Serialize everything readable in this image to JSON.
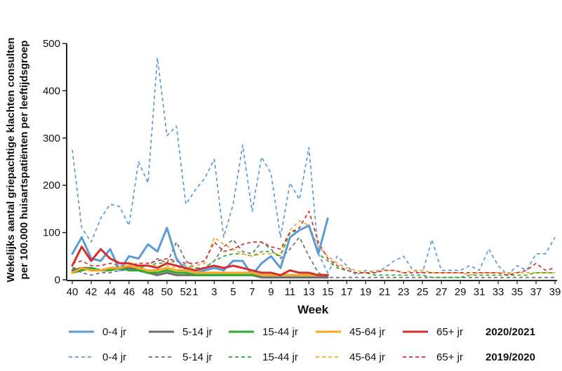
{
  "chart_data": {
    "type": "line",
    "ylabel_line1": "Wekelijks aantal griepachtige klachten consulten",
    "ylabel_line2": "per 100.000 huisartspatiënten per leeftijdsgroep",
    "xlabel": "Week",
    "ylim": [
      0,
      500
    ],
    "yticks": [
      "0",
      "100",
      "200",
      "300",
      "400",
      "500"
    ],
    "week_order": [
      40,
      41,
      42,
      43,
      44,
      45,
      46,
      47,
      48,
      49,
      50,
      51,
      52,
      1,
      2,
      3,
      4,
      5,
      6,
      7,
      8,
      9,
      10,
      11,
      12,
      13,
      14,
      15,
      16,
      17,
      18,
      19,
      20,
      21,
      22,
      23,
      24,
      25,
      26,
      27,
      28,
      29,
      30,
      31,
      32,
      33,
      34,
      35,
      36,
      37,
      38,
      39
    ],
    "xticks": [
      "40",
      "42",
      "44",
      "46",
      "48",
      "50",
      "52",
      "1",
      "3",
      "5",
      "7",
      "9",
      "11",
      "13",
      "15",
      "17",
      "19",
      "21",
      "23",
      "25",
      "27",
      "29",
      "31",
      "33",
      "35",
      "37",
      "39"
    ],
    "grid": false,
    "legend_position": "bottom",
    "legend_rows": [
      "2020/2021",
      "2019/2020"
    ],
    "series": [
      {
        "name": "0-4 jr",
        "season": "2019/2020",
        "color": "#5b9bd5",
        "dashed": true,
        "values": [
          275,
          110,
          80,
          130,
          160,
          155,
          115,
          250,
          205,
          470,
          305,
          325,
          160,
          190,
          215,
          255,
          90,
          160,
          285,
          145,
          260,
          225,
          90,
          205,
          170,
          280,
          55,
          15,
          50,
          30,
          10,
          20,
          15,
          25,
          40,
          50,
          20,
          15,
          85,
          20,
          20,
          20,
          30,
          20,
          65,
          30,
          10,
          30,
          20,
          55,
          55,
          90
        ]
      },
      {
        "name": "5-14 jr",
        "season": "2019/2020",
        "color": "#6d6d6d",
        "dashed": true,
        "values": [
          25,
          15,
          10,
          15,
          15,
          20,
          20,
          25,
          30,
          45,
          35,
          80,
          40,
          25,
          25,
          40,
          70,
          85,
          60,
          55,
          80,
          65,
          45,
          65,
          90,
          50,
          15,
          5,
          5,
          5,
          5,
          5,
          5,
          5,
          5,
          5,
          5,
          5,
          5,
          5,
          5,
          5,
          5,
          5,
          5,
          5,
          5,
          5,
          5,
          5,
          5,
          5
        ]
      },
      {
        "name": "15-44 jr",
        "season": "2019/2020",
        "color": "#2eaa2e",
        "dashed": true,
        "values": [
          25,
          25,
          20,
          20,
          25,
          30,
          25,
          25,
          30,
          35,
          35,
          40,
          30,
          25,
          25,
          40,
          50,
          55,
          55,
          50,
          60,
          60,
          50,
          100,
          105,
          115,
          55,
          40,
          25,
          20,
          15,
          15,
          10,
          10,
          10,
          10,
          10,
          10,
          5,
          5,
          5,
          5,
          10,
          10,
          10,
          10,
          10,
          10,
          10,
          15,
          15,
          15
        ]
      },
      {
        "name": "45-64 jr",
        "season": "2019/2020",
        "color": "#f5a623",
        "dashed": true,
        "values": [
          20,
          25,
          20,
          20,
          20,
          25,
          25,
          30,
          30,
          30,
          30,
          25,
          25,
          30,
          35,
          90,
          75,
          65,
          55,
          50,
          55,
          55,
          55,
          105,
          125,
          115,
          70,
          50,
          35,
          25,
          20,
          15,
          20,
          20,
          20,
          15,
          20,
          20,
          15,
          15,
          15,
          15,
          10,
          15,
          15,
          15,
          15,
          15,
          15,
          15,
          15,
          15
        ]
      },
      {
        "name": "65+ jr",
        "season": "2019/2020",
        "color": "#d32f2f",
        "dashed": true,
        "values": [
          35,
          40,
          30,
          30,
          35,
          30,
          30,
          35,
          35,
          40,
          45,
          40,
          35,
          35,
          40,
          80,
          60,
          65,
          75,
          80,
          80,
          70,
          65,
          100,
          110,
          145,
          80,
          45,
          30,
          20,
          15,
          15,
          15,
          20,
          20,
          15,
          15,
          15,
          15,
          15,
          15,
          15,
          15,
          15,
          15,
          15,
          10,
          15,
          20,
          35,
          20,
          25
        ]
      },
      {
        "name": "0-4 jr",
        "season": "2020/2021",
        "color": "#5b9bd5",
        "dashed": false,
        "values": [
          55,
          90,
          45,
          40,
          65,
          20,
          50,
          45,
          75,
          60,
          110,
          45,
          20,
          15,
          20,
          25,
          20,
          40,
          40,
          10,
          35,
          50,
          25,
          90,
          105,
          115,
          55,
          130
        ]
      },
      {
        "name": "5-14 jr",
        "season": "2020/2021",
        "color": "#6d6d6d",
        "dashed": false,
        "values": [
          20,
          25,
          25,
          20,
          25,
          25,
          25,
          20,
          15,
          10,
          15,
          10,
          10,
          10,
          10,
          10,
          10,
          10,
          10,
          10,
          5,
          5,
          5,
          5,
          5,
          5,
          5,
          5
        ]
      },
      {
        "name": "15-44 jr",
        "season": "2020/2021",
        "color": "#2eaa2e",
        "dashed": false,
        "values": [
          15,
          20,
          25,
          20,
          20,
          25,
          20,
          20,
          15,
          15,
          20,
          15,
          15,
          10,
          10,
          10,
          10,
          10,
          10,
          10,
          10,
          10,
          10,
          10,
          10,
          10,
          10,
          10
        ]
      },
      {
        "name": "45-64 jr",
        "season": "2020/2021",
        "color": "#f5a623",
        "dashed": false,
        "values": [
          15,
          25,
          20,
          20,
          25,
          25,
          30,
          25,
          20,
          20,
          25,
          20,
          20,
          15,
          15,
          15,
          15,
          15,
          15,
          15,
          10,
          10,
          10,
          10,
          10,
          10,
          10,
          10
        ]
      },
      {
        "name": "65+ jr",
        "season": "2020/2021",
        "color": "#d32f2f",
        "dashed": false,
        "values": [
          30,
          70,
          40,
          65,
          45,
          35,
          35,
          30,
          30,
          25,
          35,
          30,
          25,
          20,
          25,
          30,
          25,
          30,
          25,
          20,
          15,
          15,
          10,
          20,
          15,
          15,
          10,
          10
        ]
      }
    ]
  }
}
